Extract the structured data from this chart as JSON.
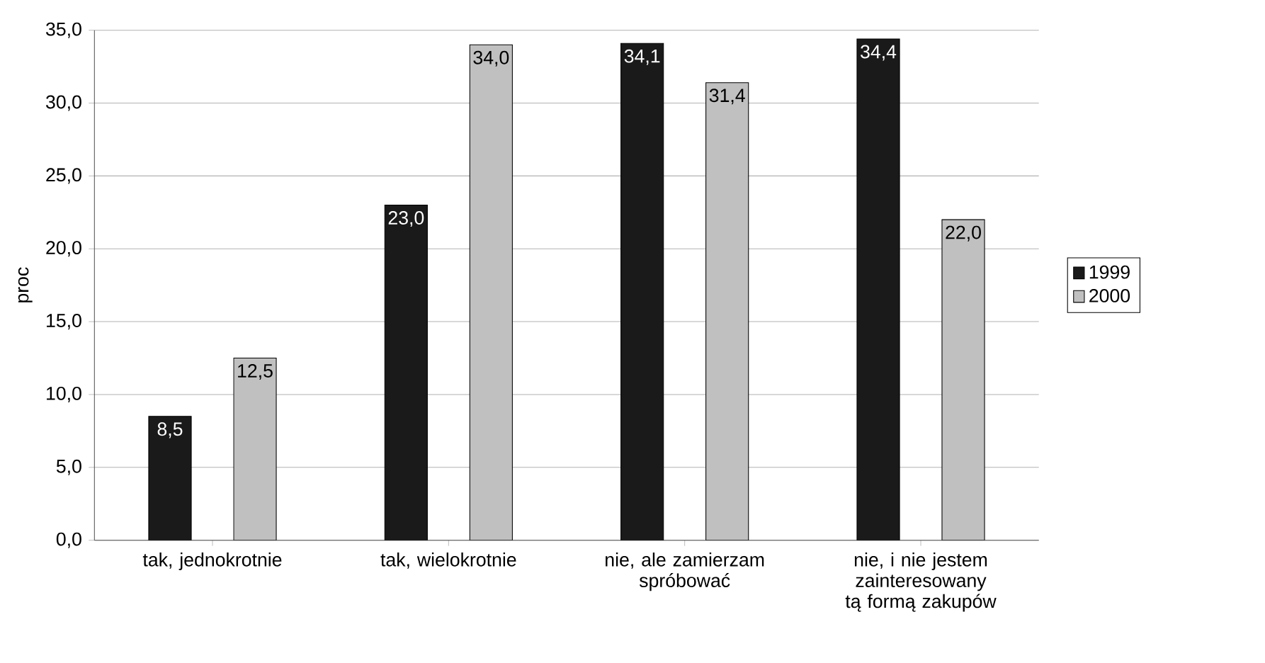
{
  "chart_data": {
    "type": "bar",
    "ylabel": "proc",
    "categories": [
      "tak, jednokrotnie",
      "tak, wielokrotnie",
      "nie, ale zamierzam spróbować",
      "nie, i nie jestem zainteresowany tą formą zakupów"
    ],
    "series": [
      {
        "name": "1999",
        "color": "#1a1a1a",
        "values": [
          8.5,
          23.0,
          34.1,
          34.4
        ],
        "value_labels": [
          "8,5",
          "23,0",
          "34,1",
          "34,4"
        ]
      },
      {
        "name": "2000",
        "color": "#c0c0c0",
        "values": [
          12.5,
          34.0,
          31.4,
          22.0
        ],
        "value_labels": [
          "12,5",
          "34,0",
          "31,4",
          "22,0"
        ]
      }
    ],
    "ylim": [
      0,
      35
    ],
    "yticks": [
      {
        "value": 0,
        "label": "0,0"
      },
      {
        "value": 5,
        "label": "5,0"
      },
      {
        "value": 10,
        "label": "10,0"
      },
      {
        "value": 15,
        "label": "15,0"
      },
      {
        "value": 20,
        "label": "20,0"
      },
      {
        "value": 25,
        "label": "25,0"
      },
      {
        "value": 30,
        "label": "30,0"
      },
      {
        "value": 35,
        "label": "35,0"
      }
    ],
    "grid": "y",
    "legend": "right"
  }
}
